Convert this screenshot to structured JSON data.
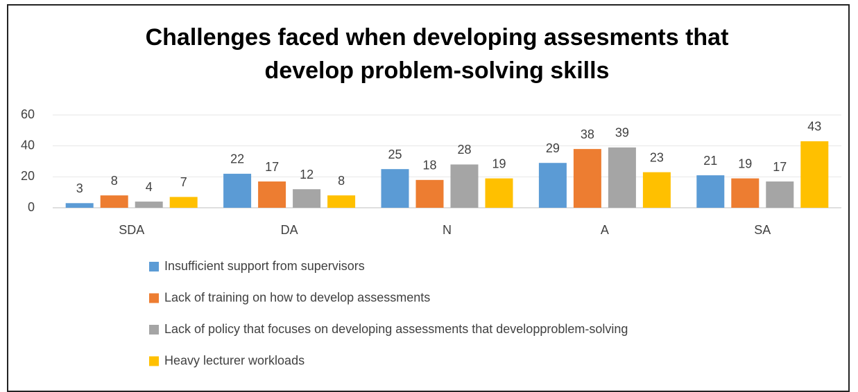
{
  "chart_data": {
    "type": "bar",
    "title": "Challenges faced when developing assesments that develop problem-solving skills",
    "categories": [
      "SDA",
      "DA",
      "N",
      "A",
      "SA"
    ],
    "series": [
      {
        "name": "Insufficient support from supervisors",
        "color": "#5b9bd5",
        "values": [
          3,
          22,
          25,
          29,
          21
        ]
      },
      {
        "name": "Lack of training on how to develop assessments",
        "color": "#ed7d31",
        "values": [
          8,
          17,
          18,
          38,
          19
        ]
      },
      {
        "name": "Lack of policy that focuses on developing assessments that developproblem-solving",
        "color": "#a5a5a5",
        "values": [
          4,
          12,
          28,
          39,
          17
        ]
      },
      {
        "name": "Heavy lecturer workloads",
        "color": "#ffc000",
        "values": [
          7,
          8,
          19,
          23,
          43
        ]
      }
    ],
    "ylim": [
      0,
      60
    ],
    "yticks": [
      0,
      20,
      40,
      60
    ],
    "grid": true,
    "legend": "bottom"
  }
}
